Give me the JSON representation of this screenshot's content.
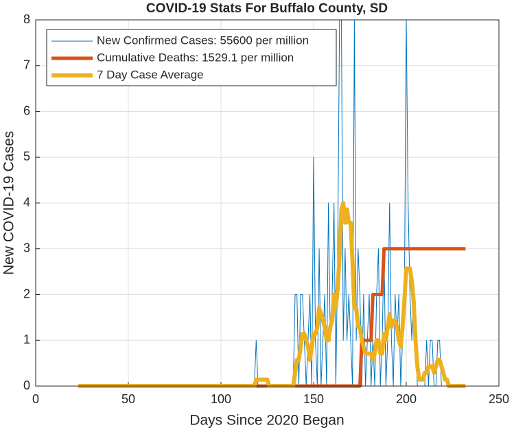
{
  "chart_data": {
    "type": "line",
    "title": "COVID-19 Stats For Buffalo County, SD",
    "x_label": "Days Since 2020 Began",
    "y_label": "New COVID-19 Cases",
    "xlim": [
      0,
      250
    ],
    "xticks": [
      0,
      50,
      100,
      150,
      200,
      250
    ],
    "ylim": [
      0,
      8
    ],
    "yticks": [
      0,
      1,
      2,
      3,
      4,
      5,
      6,
      7,
      8
    ],
    "grid": true,
    "legend": "top-left",
    "x": [
      23,
      24,
      25,
      26,
      27,
      28,
      29,
      30,
      31,
      32,
      33,
      34,
      35,
      36,
      37,
      38,
      39,
      40,
      41,
      42,
      43,
      44,
      45,
      46,
      47,
      48,
      49,
      50,
      51,
      52,
      53,
      54,
      55,
      56,
      57,
      58,
      59,
      60,
      61,
      62,
      63,
      64,
      65,
      66,
      67,
      68,
      69,
      70,
      71,
      72,
      73,
      74,
      75,
      76,
      77,
      78,
      79,
      80,
      81,
      82,
      83,
      84,
      85,
      86,
      87,
      88,
      89,
      90,
      91,
      92,
      93,
      94,
      95,
      96,
      97,
      98,
      99,
      100,
      101,
      102,
      103,
      104,
      105,
      106,
      107,
      108,
      109,
      110,
      111,
      112,
      113,
      114,
      115,
      116,
      117,
      118,
      119,
      120,
      121,
      122,
      123,
      124,
      125,
      126,
      127,
      128,
      129,
      130,
      131,
      132,
      133,
      134,
      135,
      136,
      137,
      138,
      139,
      140,
      141,
      142,
      143,
      144,
      145,
      146,
      147,
      148,
      149,
      150,
      151,
      152,
      153,
      154,
      155,
      156,
      157,
      158,
      159,
      160,
      161,
      162,
      163,
      164,
      165,
      166,
      167,
      168,
      169,
      170,
      171,
      172,
      173,
      174,
      175,
      176,
      177,
      178,
      179,
      180,
      181,
      182,
      183,
      184,
      185,
      186,
      187,
      188,
      189,
      190,
      191,
      192,
      193,
      194,
      195,
      196,
      197,
      198,
      199,
      200,
      201,
      202,
      203,
      204,
      205,
      206,
      207,
      208,
      209,
      210,
      211,
      212,
      213,
      214,
      215,
      216,
      217,
      218,
      219,
      220,
      221,
      222,
      223,
      224,
      225,
      226,
      227,
      228,
      229,
      230,
      231,
      232
    ],
    "series": [
      {
        "name": "New Confirmed Cases: 55600 per million",
        "color": "#0072BD",
        "width": 1,
        "values": [
          0,
          0,
          0,
          0,
          0,
          0,
          0,
          0,
          0,
          0,
          0,
          0,
          0,
          0,
          0,
          0,
          0,
          0,
          0,
          0,
          0,
          0,
          0,
          0,
          0,
          0,
          0,
          0,
          0,
          0,
          0,
          0,
          0,
          0,
          0,
          0,
          0,
          0,
          0,
          0,
          0,
          0,
          0,
          0,
          0,
          0,
          0,
          0,
          0,
          0,
          0,
          0,
          0,
          0,
          0,
          0,
          0,
          0,
          0,
          0,
          0,
          0,
          0,
          0,
          0,
          0,
          0,
          0,
          0,
          0,
          0,
          0,
          0,
          0,
          0,
          0,
          0,
          0,
          0,
          0,
          0,
          0,
          0,
          0,
          0,
          0,
          0,
          0,
          0,
          0,
          0,
          0,
          0,
          0,
          0,
          0,
          1,
          0,
          0,
          0,
          0,
          0,
          0,
          0,
          0,
          0,
          0,
          0,
          0,
          0,
          0,
          0,
          0,
          0,
          0,
          0,
          0,
          2,
          2,
          0,
          2,
          2,
          1,
          0,
          1,
          2,
          0,
          5,
          1,
          0,
          3,
          0,
          1,
          2,
          0,
          4,
          1,
          2,
          4,
          0,
          3,
          8,
          8,
          1,
          3,
          1,
          2,
          1,
          0,
          8,
          1,
          3,
          2,
          0,
          2,
          0,
          1,
          2,
          0,
          1,
          0,
          2,
          3,
          0,
          1,
          3,
          0,
          1,
          4,
          1,
          0,
          2,
          1,
          2,
          0,
          1,
          2,
          8,
          4,
          2,
          1,
          2,
          1,
          0,
          0,
          0,
          0,
          0,
          1,
          0,
          1,
          1,
          0,
          0,
          1,
          1,
          0,
          0,
          0,
          0,
          0,
          0,
          0,
          0,
          0,
          0,
          0,
          0,
          0,
          0
        ]
      },
      {
        "name": "Cumulative Deaths: 1529.1 per million",
        "color": "#D95319",
        "width": 5,
        "values": [
          0,
          0,
          0,
          0,
          0,
          0,
          0,
          0,
          0,
          0,
          0,
          0,
          0,
          0,
          0,
          0,
          0,
          0,
          0,
          0,
          0,
          0,
          0,
          0,
          0,
          0,
          0,
          0,
          0,
          0,
          0,
          0,
          0,
          0,
          0,
          0,
          0,
          0,
          0,
          0,
          0,
          0,
          0,
          0,
          0,
          0,
          0,
          0,
          0,
          0,
          0,
          0,
          0,
          0,
          0,
          0,
          0,
          0,
          0,
          0,
          0,
          0,
          0,
          0,
          0,
          0,
          0,
          0,
          0,
          0,
          0,
          0,
          0,
          0,
          0,
          0,
          0,
          0,
          0,
          0,
          0,
          0,
          0,
          0,
          0,
          0,
          0,
          0,
          0,
          0,
          0,
          0,
          0,
          0,
          0,
          0,
          0,
          0,
          0,
          0,
          0,
          0,
          0,
          0,
          0,
          0,
          0,
          0,
          0,
          0,
          0,
          0,
          0,
          0,
          0,
          0,
          0,
          0,
          0,
          0,
          0,
          0,
          0,
          0,
          0,
          0,
          0,
          0,
          0,
          0,
          0,
          0,
          0,
          0,
          0,
          0,
          0,
          0,
          0,
          0,
          0,
          0,
          0,
          0,
          0,
          0,
          0,
          0,
          0,
          0,
          0,
          0,
          0,
          1,
          1,
          1,
          1,
          1,
          1,
          2,
          2,
          2,
          2,
          2,
          2,
          3,
          3,
          3,
          3,
          3,
          3,
          3,
          3,
          3,
          3,
          3,
          3,
          3,
          3,
          3,
          3,
          3,
          3,
          3,
          3,
          3,
          3,
          3,
          3,
          3,
          3,
          3,
          3,
          3,
          3,
          3,
          3,
          3,
          3,
          3,
          3,
          3,
          3,
          3,
          3,
          3,
          3,
          3,
          3,
          3
        ]
      },
      {
        "name": "7 Day Case Average",
        "color": "#EDB120",
        "width": 6,
        "values": [
          0,
          0,
          0,
          0,
          0,
          0,
          0,
          0,
          0,
          0,
          0,
          0,
          0,
          0,
          0,
          0,
          0,
          0,
          0,
          0,
          0,
          0,
          0,
          0,
          0,
          0,
          0,
          0,
          0,
          0,
          0,
          0,
          0,
          0,
          0,
          0,
          0,
          0,
          0,
          0,
          0,
          0,
          0,
          0,
          0,
          0,
          0,
          0,
          0,
          0,
          0,
          0,
          0,
          0,
          0,
          0,
          0,
          0,
          0,
          0,
          0,
          0,
          0,
          0,
          0,
          0,
          0,
          0,
          0,
          0,
          0,
          0,
          0,
          0,
          0,
          0,
          0,
          0,
          0,
          0,
          0,
          0,
          0,
          0,
          0,
          0,
          0,
          0,
          0,
          0,
          0,
          0,
          0,
          0,
          0,
          0,
          0.14,
          0.14,
          0.14,
          0.14,
          0.14,
          0.14,
          0.14,
          0,
          0,
          0,
          0,
          0,
          0,
          0,
          0,
          0,
          0,
          0,
          0,
          0,
          0,
          0.29,
          0.57,
          0.57,
          0.86,
          1.14,
          1.14,
          1,
          0.86,
          0.57,
          0.86,
          1.14,
          1.14,
          1.29,
          1.71,
          1.57,
          1.43,
          1.29,
          1,
          1,
          1.29,
          1.43,
          2,
          1.71,
          2.14,
          2.86,
          3.86,
          4,
          3.57,
          3.86,
          3.57,
          3.57,
          2.71,
          1.71,
          1.71,
          1.29,
          1.29,
          1,
          0.86,
          0.71,
          0.71,
          0.71,
          0.71,
          0.57,
          0.71,
          1,
          1,
          0.71,
          0.71,
          1.14,
          1,
          1.29,
          1.57,
          1.29,
          1.43,
          1.43,
          1.29,
          1,
          0.86,
          1.29,
          1.86,
          2.57,
          2.57,
          2.57,
          2.29,
          1.86,
          1,
          0.43,
          0.14,
          0.14,
          0.14,
          0.29,
          0.29,
          0.43,
          0.43,
          0.43,
          0.29,
          0.43,
          0.57,
          0.57,
          0.43,
          0.29,
          0.14,
          0.14,
          0,
          0,
          0,
          0,
          0,
          0,
          0,
          0,
          0,
          0
        ]
      }
    ]
  }
}
